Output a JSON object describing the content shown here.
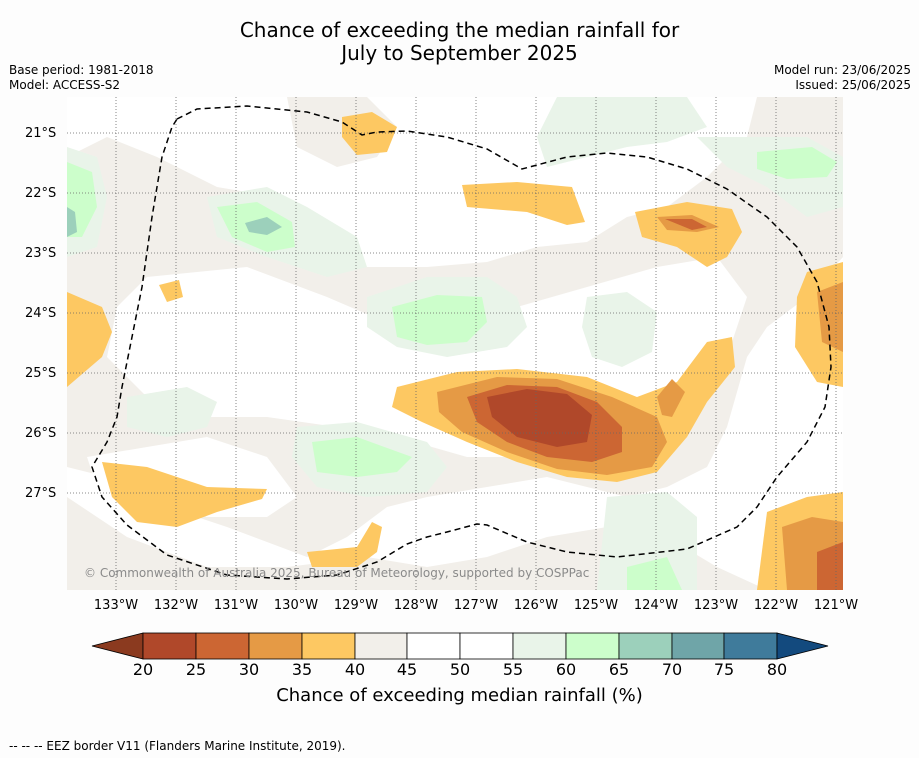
{
  "header": {
    "title_line1": "Chance of exceeding the median rainfall for",
    "title_line2": "July to September 2025",
    "base_period": "Base period: 1981-2018",
    "model": "Model: ACCESS-S2",
    "model_run": "Model run: 23/06/2025",
    "issued": "Issued: 25/06/2025"
  },
  "map": {
    "lat_labels": [
      "21°S",
      "22°S",
      "23°S",
      "24°S",
      "25°S",
      "26°S",
      "27°S"
    ],
    "lon_labels": [
      "133°W",
      "132°W",
      "131°W",
      "130°W",
      "129°W",
      "128°W",
      "127°W",
      "126°W",
      "125°W",
      "124°W",
      "123°W",
      "122°W",
      "121°W"
    ],
    "copyright": "© Commonwealth of Australia 2025, Bureau of Meteorology, supported by COSPPac"
  },
  "colorbar": {
    "ticks": [
      "20",
      "25",
      "30",
      "35",
      "40",
      "45",
      "50",
      "55",
      "60",
      "65",
      "70",
      "75",
      "80"
    ],
    "colors": {
      "below_20": "#8b3a1f",
      "20_25": "#b0482a",
      "25_30": "#cc6633",
      "30_35": "#e59a45",
      "35_40": "#fdc862",
      "40_45": "#f2efea",
      "45_50": "#ffffff",
      "50_55": "#ffffff",
      "55_60": "#e9f4e9",
      "60_65": "#ccfecb",
      "65_70": "#9cd0bb",
      "70_75": "#6fa5a8",
      "75_80": "#3f7b9b",
      "above_80": "#134a7e"
    },
    "label": "Chance of exceeding median rainfall (%)"
  },
  "legend": {
    "text": "-- -- -- EEZ border V11 (Flanders Marine Institute, 2019)."
  }
}
